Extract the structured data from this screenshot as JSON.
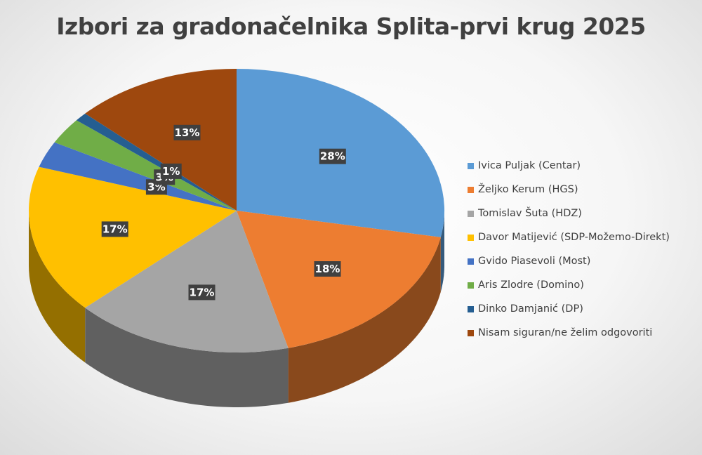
{
  "chart_data": {
    "type": "pie",
    "title": "Izbori za gradonačelnika Splita-prvi krug 2025",
    "legend_position": "right",
    "series": [
      {
        "name": "Ivica Puljak (Centar)",
        "value": 28,
        "label": "28%",
        "color": "#5B9BD5"
      },
      {
        "name": "Željko Kerum (HGS)",
        "value": 18,
        "label": "18%",
        "color": "#ED7D31"
      },
      {
        "name": "Tomislav Šuta (HDZ)",
        "value": 17,
        "label": "17%",
        "color": "#A5A5A5"
      },
      {
        "name": "Davor Matijević (SDP-Možemo-Direkt)",
        "value": 17,
        "label": "17%",
        "color": "#FFC000"
      },
      {
        "name": "Gvido Piasevoli (Most)",
        "value": 3,
        "label": "3%",
        "color": "#4472C4"
      },
      {
        "name": "Aris Zlodre (Domino)",
        "value": 3,
        "label": "3%",
        "color": "#70AD47"
      },
      {
        "name": "Dinko Damjanić (DP)",
        "value": 1,
        "label": "1%",
        "color": "#255E91"
      },
      {
        "name": "Nisam siguran/ne želim odgovoriti",
        "value": 13,
        "label": "13%",
        "color": "#9E480E"
      }
    ]
  }
}
